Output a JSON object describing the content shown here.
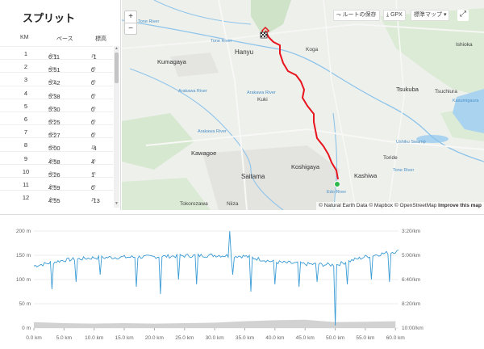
{
  "splits": {
    "title": "スプリット",
    "headers": {
      "km": "KM",
      "pace": "ペース",
      "elev": "標高"
    },
    "pace_unit": "/km",
    "elev_unit": "m",
    "rows": [
      {
        "km": "1",
        "pace": "6:11",
        "elev": "-1"
      },
      {
        "km": "2",
        "pace": "5:51",
        "elev": "0"
      },
      {
        "km": "3",
        "pace": "5:42",
        "elev": "0"
      },
      {
        "km": "4",
        "pace": "5:38",
        "elev": "0"
      },
      {
        "km": "5",
        "pace": "5:30",
        "elev": "0"
      },
      {
        "km": "6",
        "pace": "5:25",
        "elev": "0"
      },
      {
        "km": "7",
        "pace": "5:27",
        "elev": "0"
      },
      {
        "km": "8",
        "pace": "5:00",
        "elev": "-4"
      },
      {
        "km": "9",
        "pace": "4:58",
        "elev": "4"
      },
      {
        "km": "10",
        "pace": "5:26",
        "elev": "1"
      },
      {
        "km": "11",
        "pace": "4:59",
        "elev": "0"
      },
      {
        "km": "12",
        "pace": "4:55",
        "elev": "-13"
      }
    ]
  },
  "map": {
    "zoom_in": "+",
    "zoom_out": "−",
    "save_route": "ルートの保存",
    "gpx": "GPX",
    "map_type": "標準マップ",
    "attribution": "© Natural Earth Data © Mapbox © OpenStreetMap",
    "improve": "Improve this map",
    "route_color": "#e8141e",
    "start_color": "#2db84b",
    "labels": {
      "hanyu": "Hanyu",
      "koga": "Koga",
      "kumagaya": "Kumagaya",
      "kuki": "Kuki",
      "kawagoe": "Kawagoe",
      "saitama": "Saitama",
      "koshigaya": "Koshigaya",
      "kashiwa": "Kashiwa",
      "tokorozawa": "Tokorozawa",
      "niiza": "Niiza",
      "tsukuba": "Tsukuba",
      "tsuchiura": "Tsuchiura",
      "toride": "Toride",
      "ishioka": "Ishioka",
      "tone_river_1": "Tone River",
      "tone_river_2": "Tone River",
      "arakawa_river_1": "Arakawa River",
      "arakawa_river_2": "Arakawa River",
      "arakawa_river_3": "Arakawa River",
      "edo_river": "Edo River",
      "tone_river_3": "Tone River",
      "kasumigaura": "Kasumigaura",
      "ushiku_swamp": "Ushiku Swamp"
    }
  },
  "chart_data": {
    "type": "area",
    "x_ticks": [
      "0.0 km",
      "5.0 km",
      "10.0 km",
      "15.0 km",
      "20.0 km",
      "25.0 km",
      "30.0 km",
      "35.0 km",
      "40.0 km",
      "45.0 km",
      "50.0 km",
      "55.0 km",
      "60.0 km"
    ],
    "xlim": [
      0,
      60.5
    ],
    "left_ticks": [
      "200 m",
      "150 m",
      "100 m",
      "50 m",
      "0 m"
    ],
    "right_ticks": [
      "3:20/km",
      "5:00/km",
      "6:40/km",
      "8:20/km",
      "10:00/km"
    ],
    "elevation_color": "#d2d2d2",
    "pace_color": "#3a9bd5",
    "elevation_m": [
      [
        0,
        12
      ],
      [
        5,
        10
      ],
      [
        10,
        9
      ],
      [
        15,
        10
      ],
      [
        20,
        9
      ],
      [
        25,
        10
      ],
      [
        30,
        11
      ],
      [
        35,
        14
      ],
      [
        40,
        16
      ],
      [
        45,
        17
      ],
      [
        50,
        12
      ],
      [
        55,
        13
      ],
      [
        60,
        14
      ]
    ],
    "pace_baseline_m": [
      [
        0,
        128
      ],
      [
        5,
        140
      ],
      [
        10,
        145
      ],
      [
        15,
        146
      ],
      [
        20,
        147
      ],
      [
        25,
        149
      ],
      [
        30,
        150
      ],
      [
        35,
        148
      ],
      [
        40,
        136
      ],
      [
        45,
        132
      ],
      [
        50,
        130
      ],
      [
        55,
        147
      ],
      [
        60,
        158
      ]
    ]
  }
}
